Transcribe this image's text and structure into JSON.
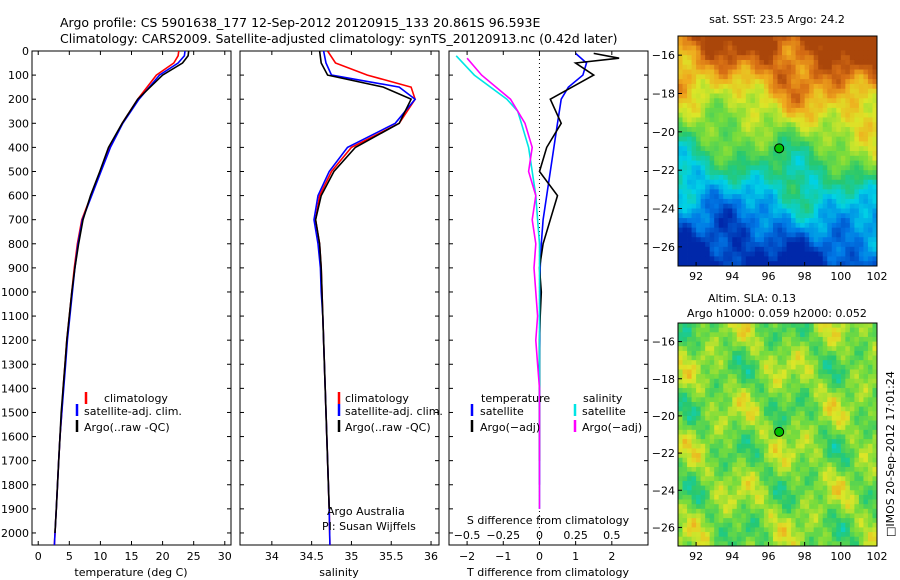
{
  "header": {
    "title_line1": "Argo profile: CS 5901638_177 12-Sep-2012 20120915_133 20.861S 96.593E",
    "title_line2": "Climatology: CARS2009. Satellite-adjusted climatology: synTS_20120913.nc (0.42d later)"
  },
  "chart_data": [
    {
      "id": "temperature",
      "type": "line",
      "xlabel": "temperature (deg C)",
      "ylabel": "",
      "xlim": [
        -1,
        31
      ],
      "ylim": [
        2050,
        0
      ],
      "xticks": [
        0,
        5,
        10,
        15,
        20,
        25,
        30
      ],
      "yticks": [
        0,
        100,
        200,
        300,
        400,
        500,
        600,
        700,
        800,
        900,
        1000,
        1100,
        1200,
        1300,
        1400,
        1500,
        1600,
        1700,
        1800,
        1900,
        2000
      ],
      "legend": {
        "position": "lower-middle",
        "entries": [
          "climatology",
          "satellite-adj. clim.",
          "Argo(..raw -QC)"
        ]
      },
      "series": [
        {
          "name": "climatology",
          "color": "#ff0000",
          "x": [
            22.6,
            22.5,
            21.8,
            19.0,
            16.0,
            13.5,
            11.5,
            10.0,
            8.5,
            7.0,
            6.3,
            5.8,
            5.4,
            5.0,
            4.6,
            4.3,
            4.0,
            3.8,
            3.5,
            3.3,
            3.1,
            2.9,
            2.7,
            2.6
          ],
          "y": [
            0,
            20,
            50,
            100,
            200,
            300,
            400,
            500,
            600,
            700,
            800,
            900,
            1000,
            1100,
            1200,
            1300,
            1400,
            1500,
            1600,
            1700,
            1800,
            1900,
            2000,
            2050
          ]
        },
        {
          "name": "satellite-adj. clim.",
          "color": "#0000ff",
          "x": [
            23.6,
            23.5,
            22.5,
            19.5,
            16.2,
            13.6,
            11.6,
            10.1,
            8.6,
            7.1,
            6.4,
            5.9,
            5.5,
            5.1,
            4.7,
            4.4,
            4.1,
            3.8,
            3.5,
            3.3,
            3.1,
            2.9,
            2.7,
            2.6
          ],
          "y": [
            0,
            20,
            50,
            100,
            200,
            300,
            400,
            500,
            600,
            700,
            800,
            900,
            1000,
            1100,
            1200,
            1300,
            1400,
            1500,
            1600,
            1700,
            1800,
            1900,
            2000,
            2050
          ]
        },
        {
          "name": "Argo(..raw -QC)",
          "color": "#000000",
          "x": [
            24.2,
            24.1,
            23.2,
            20.0,
            16.0,
            13.5,
            11.3,
            9.9,
            8.4,
            7.2,
            6.5,
            5.9,
            5.4,
            5.0,
            4.6,
            4.3,
            4.0,
            3.7,
            3.5,
            3.3,
            3.1,
            2.9,
            2.7
          ],
          "y": [
            0,
            20,
            50,
            100,
            200,
            300,
            400,
            500,
            600,
            700,
            800,
            900,
            1000,
            1100,
            1200,
            1300,
            1400,
            1500,
            1600,
            1700,
            1800,
            1900,
            2000
          ]
        }
      ]
    },
    {
      "id": "salinity",
      "type": "line",
      "xlabel": "salinity",
      "ylabel": "",
      "xlim": [
        33.6,
        36.1
      ],
      "ylim": [
        2050,
        0
      ],
      "xticks": [
        34,
        34.5,
        35,
        35.5,
        36
      ],
      "xtick_labels": [
        "34",
        "34.5",
        "35",
        "35.5",
        "36"
      ],
      "legend": {
        "position": "lower-right",
        "entries": [
          "climatology",
          "satellite-adj. clim.",
          "Argo(..raw -QC)"
        ]
      },
      "annotations": [
        "Argo Australia",
        "PI: Susan Wijffels"
      ],
      "series": [
        {
          "name": "climatology",
          "color": "#ff0000",
          "x": [
            34.7,
            34.8,
            35.2,
            35.75,
            35.8,
            35.6,
            35.0,
            34.75,
            34.6,
            34.55,
            34.6,
            34.62,
            34.63,
            34.64,
            34.65,
            34.66,
            34.67,
            34.68,
            34.69,
            34.7,
            34.71,
            34.72,
            34.73
          ],
          "y": [
            0,
            50,
            100,
            150,
            200,
            300,
            400,
            500,
            600,
            700,
            800,
            900,
            1000,
            1100,
            1200,
            1300,
            1400,
            1500,
            1600,
            1700,
            1800,
            1900,
            2050
          ]
        },
        {
          "name": "satellite-adj. clim.",
          "color": "#0000ff",
          "x": [
            34.65,
            34.68,
            34.75,
            35.6,
            35.8,
            35.55,
            34.95,
            34.72,
            34.58,
            34.53,
            34.58,
            34.61,
            34.62,
            34.64,
            34.65,
            34.66,
            34.67,
            34.68,
            34.69,
            34.7,
            34.71,
            34.72,
            34.73
          ],
          "y": [
            0,
            50,
            100,
            150,
            200,
            300,
            400,
            500,
            600,
            700,
            800,
            900,
            1000,
            1100,
            1200,
            1300,
            1400,
            1500,
            1600,
            1700,
            1800,
            1900,
            2050
          ]
        },
        {
          "name": "Argo(..raw -QC)",
          "color": "#000000",
          "x": [
            34.6,
            34.62,
            34.7,
            35.4,
            35.75,
            35.6,
            35.05,
            34.78,
            34.62,
            34.55,
            34.6,
            34.62,
            34.63,
            34.64,
            34.65,
            34.66,
            34.67,
            34.68,
            34.69,
            34.7,
            34.71,
            34.72
          ],
          "y": [
            0,
            50,
            100,
            150,
            200,
            300,
            400,
            500,
            600,
            700,
            800,
            900,
            1000,
            1100,
            1200,
            1300,
            1400,
            1500,
            1600,
            1700,
            1800,
            1900
          ]
        }
      ]
    },
    {
      "id": "difference",
      "type": "line",
      "xlabel": "T difference from climatology",
      "xlabel_top": "S difference from climatology",
      "xlim": [
        -2.5,
        3
      ],
      "ylim": [
        2050,
        0
      ],
      "xticks": [
        -2,
        -1,
        0,
        1,
        2
      ],
      "xtick_labels": [
        "−2",
        "−1",
        "0",
        "1",
        "2"
      ],
      "xticks_top": [
        -0.5,
        -0.25,
        0,
        0.25,
        0.5
      ],
      "xtick_top_labels": [
        "−0.5",
        "−0.25",
        "0",
        "0.25",
        "0.5"
      ],
      "legend": {
        "position": "lower-middle",
        "groups": [
          {
            "title": "temperature",
            "entries": [
              "satellite",
              "Argo(−adj)"
            ]
          },
          {
            "title": "salinity",
            "entries": [
              "satellite",
              "Argo(−adj)"
            ]
          }
        ]
      },
      "series": [
        {
          "name": "satellite",
          "group": "temperature",
          "color": "#0000ff",
          "x": [
            1.0,
            1.3,
            1.2,
            0.8,
            0.6,
            0.5,
            0.4,
            0.3,
            0.2,
            0.1,
            0.05,
            0.02,
            0.02,
            0.01,
            0.01,
            0.0,
            0.0,
            0.0,
            0.0,
            0.0,
            0.0
          ],
          "y": [
            10,
            50,
            100,
            150,
            200,
            300,
            400,
            500,
            600,
            700,
            800,
            900,
            1000,
            1100,
            1200,
            1300,
            1400,
            1500,
            1600,
            1700,
            1800
          ]
        },
        {
          "name": "Argo(−adj)",
          "group": "temperature",
          "color": "#000000",
          "x": [
            1.5,
            2.2,
            1.0,
            1.5,
            0.3,
            0.6,
            0.2,
            0.0,
            0.5,
            0.3,
            0.1,
            0.0,
            0.05,
            0.02,
            0.0,
            0.0,
            0.0,
            0.0,
            0.0,
            0.0
          ],
          "y": [
            10,
            30,
            50,
            100,
            200,
            300,
            400,
            500,
            600,
            700,
            800,
            900,
            1000,
            1100,
            1200,
            1300,
            1400,
            1500,
            1600,
            1700
          ]
        },
        {
          "name": "satellite",
          "group": "salinity",
          "color": "#00e5e5",
          "x": [
            -2.3,
            -1.8,
            -0.9,
            -0.6,
            -0.5,
            -0.3,
            -0.2,
            -0.1,
            -0.05,
            0.0,
            0.0,
            0.0,
            0.0,
            0.0,
            0.0,
            0.0,
            0.0,
            0.0,
            0.0,
            0.0
          ],
          "y": [
            20,
            100,
            200,
            250,
            300,
            400,
            500,
            600,
            700,
            800,
            900,
            1000,
            1100,
            1200,
            1300,
            1400,
            1500,
            1600,
            1700,
            1900
          ]
        },
        {
          "name": "Argo(−adj)",
          "group": "salinity",
          "color": "#ff00ff",
          "x": [
            -2.0,
            -1.6,
            -0.8,
            -0.4,
            -0.2,
            -0.3,
            -0.1,
            -0.2,
            -0.1,
            -0.15,
            -0.1,
            -0.05,
            -0.1,
            -0.05,
            0.0,
            0.0,
            0.0,
            0.0,
            0.0
          ],
          "y": [
            30,
            100,
            200,
            300,
            400,
            500,
            600,
            700,
            800,
            900,
            1000,
            1100,
            1200,
            1300,
            1400,
            1500,
            1600,
            1700,
            1900
          ]
        }
      ]
    },
    {
      "id": "sst-map",
      "type": "heatmap",
      "title": "sat. SST: 23.5  Argo: 24.2",
      "xlim": [
        91,
        102
      ],
      "ylim": [
        -27,
        -15
      ],
      "xticks": [
        92,
        94,
        96,
        98,
        100,
        102
      ],
      "yticks": [
        -16,
        -18,
        -20,
        -22,
        -24,
        -26
      ],
      "marker": {
        "lon": 96.593,
        "lat": -20.861,
        "fill": "#00c000"
      }
    },
    {
      "id": "sla-map",
      "type": "heatmap",
      "title_line1": "Altim. SLA: 0.13",
      "title_line2": "Argo h1000: 0.059  h2000: 0.052",
      "xlim": [
        91,
        102
      ],
      "ylim": [
        -27,
        -15
      ],
      "xticks": [
        92,
        94,
        96,
        98,
        100,
        102
      ],
      "yticks": [
        -16,
        -18,
        -20,
        -22,
        -24,
        -26
      ],
      "marker": {
        "lon": 96.593,
        "lat": -20.861,
        "fill": "#00c000"
      }
    }
  ],
  "side_label": "□IMOS 20-Sep-2012 17:01:24"
}
